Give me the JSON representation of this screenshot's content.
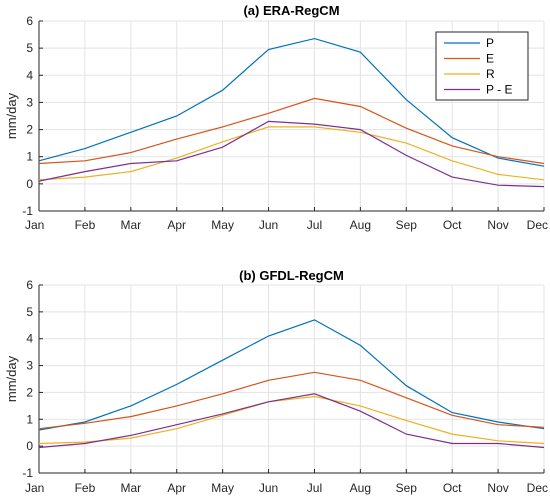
{
  "chart_data": [
    {
      "type": "line",
      "title": "(a) ERA-RegCM",
      "ylabel": "mm/day",
      "xlabel": "",
      "categories": [
        "Jan",
        "Feb",
        "Mar",
        "Apr",
        "May",
        "Jun",
        "Jul",
        "Aug",
        "Sep",
        "Oct",
        "Nov",
        "Dec"
      ],
      "ylim": [
        -1,
        6
      ],
      "yticks": [
        "-1",
        "0",
        "1",
        "2",
        "3",
        "4",
        "5",
        "6"
      ],
      "grid": true,
      "legend_position": "top-right",
      "series": [
        {
          "name": "P",
          "color": "#0072BD",
          "values": [
            0.85,
            1.3,
            1.9,
            2.5,
            3.45,
            4.95,
            5.35,
            4.85,
            3.1,
            1.7,
            0.95,
            0.65
          ]
        },
        {
          "name": "E",
          "color": "#D95319",
          "values": [
            0.75,
            0.85,
            1.15,
            1.65,
            2.1,
            2.6,
            3.15,
            2.85,
            2.05,
            1.4,
            1.0,
            0.75
          ]
        },
        {
          "name": "R",
          "color": "#EDB120",
          "values": [
            0.15,
            0.25,
            0.45,
            0.95,
            1.55,
            2.1,
            2.1,
            1.9,
            1.5,
            0.85,
            0.35,
            0.15
          ]
        },
        {
          "name": "P - E",
          "color": "#7E2F8E",
          "values": [
            0.1,
            0.45,
            0.75,
            0.85,
            1.35,
            2.3,
            2.2,
            2.0,
            1.05,
            0.25,
            -0.05,
            -0.1
          ]
        }
      ]
    },
    {
      "type": "line",
      "title": "(b) GFDL-RegCM",
      "ylabel": "mm/day",
      "xlabel": "",
      "categories": [
        "Jan",
        "Feb",
        "Mar",
        "Apr",
        "May",
        "Jun",
        "Jul",
        "Aug",
        "Sep",
        "Oct",
        "Nov",
        "Dec"
      ],
      "ylim": [
        -1,
        6
      ],
      "yticks": [
        "-1",
        "0",
        "1",
        "2",
        "3",
        "4",
        "5",
        "6"
      ],
      "grid": true,
      "series": [
        {
          "name": "P",
          "color": "#0072BD",
          "values": [
            0.6,
            0.9,
            1.5,
            2.3,
            3.2,
            4.1,
            4.7,
            3.75,
            2.25,
            1.25,
            0.9,
            0.65
          ]
        },
        {
          "name": "E",
          "color": "#D95319",
          "values": [
            0.65,
            0.85,
            1.1,
            1.5,
            1.95,
            2.45,
            2.75,
            2.45,
            1.8,
            1.15,
            0.8,
            0.7
          ]
        },
        {
          "name": "R",
          "color": "#EDB120",
          "values": [
            0.1,
            0.15,
            0.3,
            0.65,
            1.15,
            1.65,
            1.85,
            1.5,
            0.95,
            0.45,
            0.2,
            0.1
          ]
        },
        {
          "name": "P - E",
          "color": "#7E2F8E",
          "values": [
            -0.05,
            0.1,
            0.4,
            0.8,
            1.2,
            1.65,
            1.95,
            1.3,
            0.45,
            0.1,
            0.1,
            -0.05
          ]
        }
      ]
    }
  ]
}
